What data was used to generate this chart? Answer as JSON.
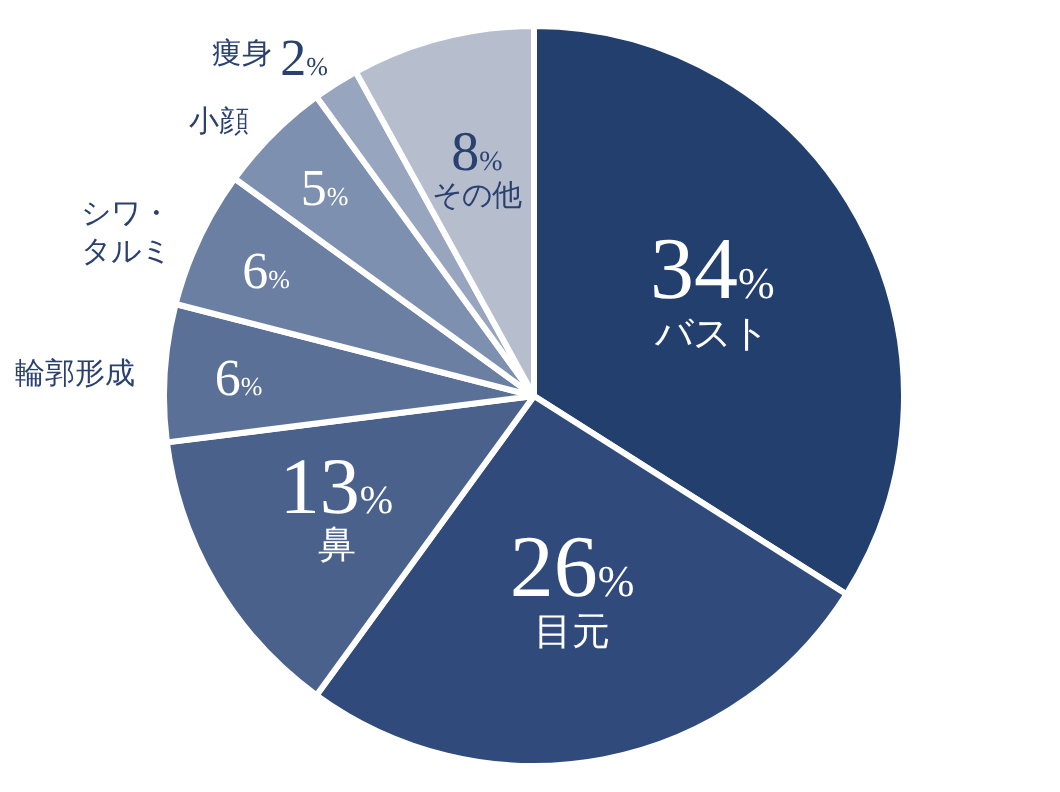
{
  "chart_data": {
    "type": "pie",
    "categories": [
      "バスト",
      "目元",
      "鼻",
      "輪郭形成",
      "シワ・タルミ",
      "小顔",
      "痩身",
      "その他"
    ],
    "values": [
      34,
      26,
      13,
      6,
      6,
      5,
      2,
      8
    ],
    "colors": [
      "#233f6e",
      "#304b7b",
      "#4a618c",
      "#5b7097",
      "#6b7fa3",
      "#7e90af",
      "#98a5be",
      "#b6bdcd"
    ],
    "value_labels": [
      "34%",
      "26%",
      "13%",
      "6%",
      "6%",
      "5%",
      "2%",
      "8%"
    ]
  }
}
